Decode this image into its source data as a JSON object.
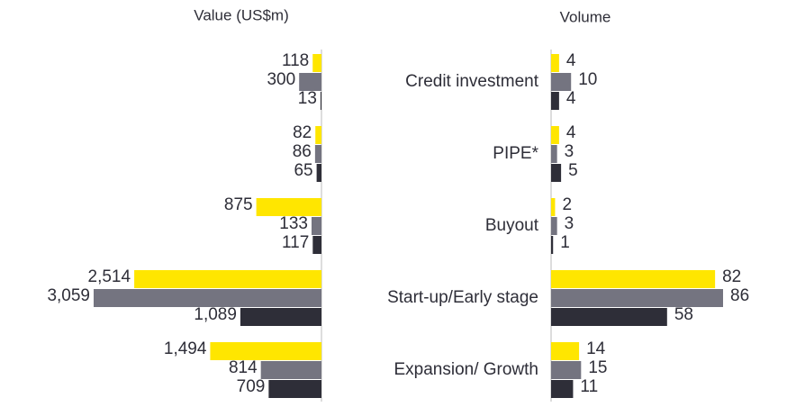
{
  "chart_data": {
    "type": "bar",
    "orientation": "horizontal",
    "categories": [
      "Credit investment",
      "PIPE*",
      "Buyout",
      "Start-up/Early stage",
      "Expansion/ Growth"
    ],
    "panels": [
      {
        "title": "Value (US$m)",
        "direction": "left",
        "series": [
          {
            "color": "#ffe600",
            "values": [
              118,
              82,
              875,
              2514,
              1494
            ],
            "value_labels": [
              "118",
              "82",
              "875",
              "2,514",
              "1,494"
            ]
          },
          {
            "color": "#747480",
            "values": [
              300,
              86,
              133,
              3059,
              814
            ],
            "value_labels": [
              "300",
              "86",
              "133",
              "3,059",
              "814"
            ]
          },
          {
            "color": "#2e2e38",
            "values": [
              13,
              65,
              117,
              1089,
              709
            ],
            "value_labels": [
              "13",
              "65",
              "117",
              "1,089",
              "709"
            ]
          }
        ]
      },
      {
        "title": "Volume",
        "direction": "right",
        "series": [
          {
            "color": "#ffe600",
            "values": [
              4,
              4,
              2,
              82,
              14
            ]
          },
          {
            "color": "#747480",
            "values": [
              10,
              3,
              3,
              86,
              15
            ]
          },
          {
            "color": "#2e2e38",
            "values": [
              4,
              5,
              1,
              58,
              11
            ]
          }
        ]
      }
    ]
  }
}
